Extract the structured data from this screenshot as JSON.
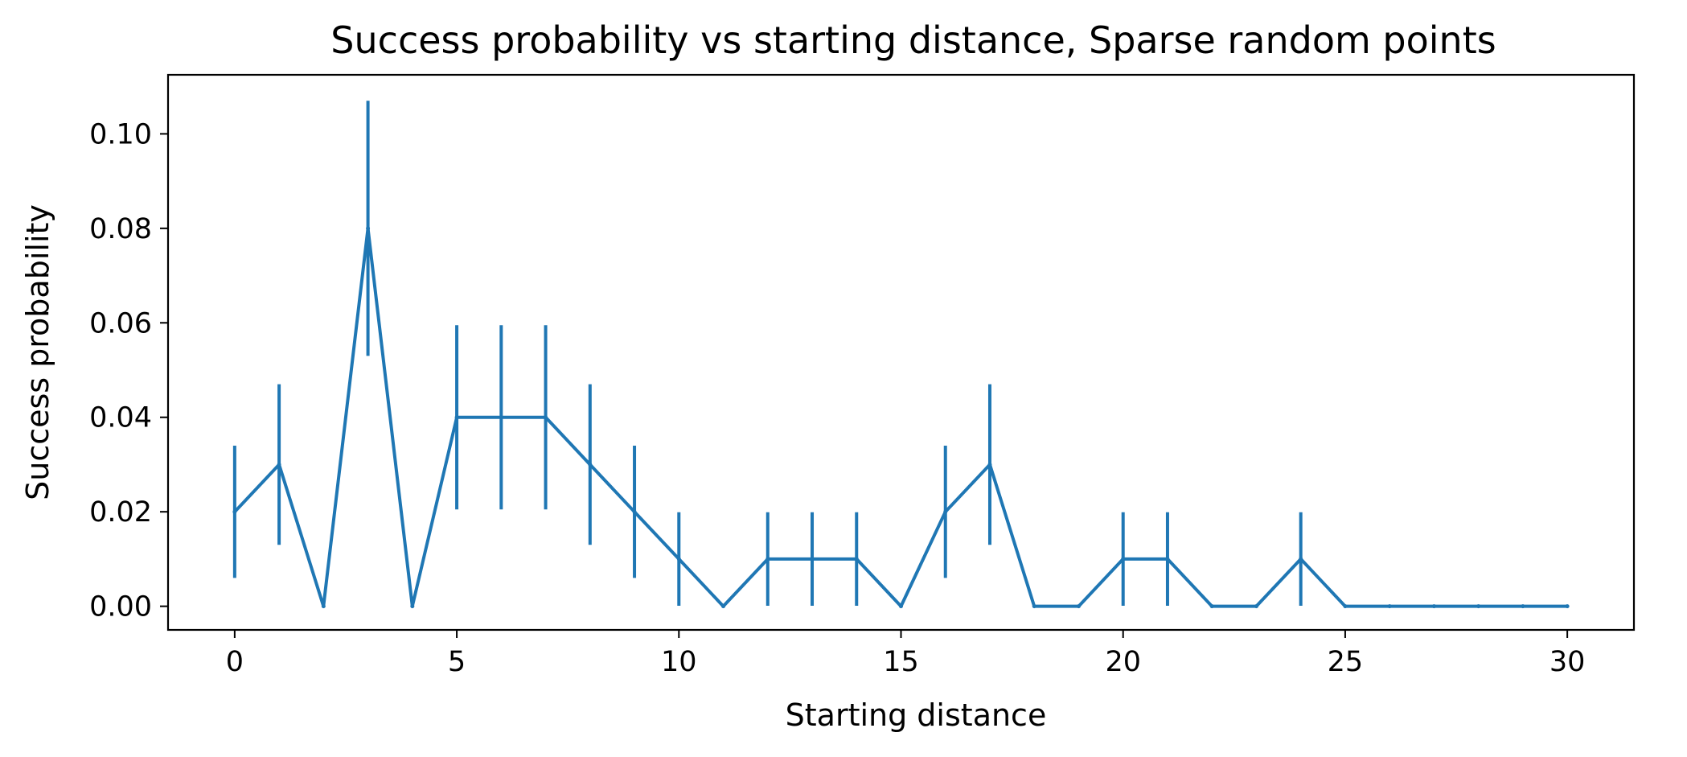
{
  "chart_data": {
    "type": "line",
    "title": "Success probability vs starting distance, Sparse random points",
    "xlabel": "Starting distance",
    "ylabel": "Success probability",
    "xlim": [
      -1.5,
      31.5
    ],
    "ylim": [
      -0.005,
      0.1125
    ],
    "xticks": [
      0,
      5,
      10,
      15,
      20,
      25,
      30
    ],
    "xtick_labels": [
      "0",
      "5",
      "10",
      "15",
      "20",
      "25",
      "30"
    ],
    "yticks": [
      0.0,
      0.02,
      0.04,
      0.06,
      0.08,
      0.1
    ],
    "ytick_labels": [
      "0.00",
      "0.02",
      "0.04",
      "0.06",
      "0.08",
      "0.10"
    ],
    "grid": false,
    "legend": "none",
    "color": "#1f77b4",
    "series": [
      {
        "name": "Success probability",
        "x": [
          0,
          1,
          2,
          3,
          4,
          5,
          6,
          7,
          8,
          9,
          10,
          11,
          12,
          13,
          14,
          15,
          16,
          17,
          18,
          19,
          20,
          21,
          22,
          23,
          24,
          25,
          26,
          27,
          28,
          29,
          30
        ],
        "values": [
          0.02,
          0.03,
          0.0,
          0.08,
          0.0,
          0.04,
          0.04,
          0.04,
          0.03,
          0.02,
          0.01,
          0.0,
          0.01,
          0.01,
          0.01,
          0.0,
          0.02,
          0.03,
          0.0,
          0.0,
          0.01,
          0.01,
          0.0,
          0.0,
          0.01,
          0.0,
          0.0,
          0.0,
          0.0,
          0.0,
          0.0
        ],
        "errors": [
          0.014,
          0.017,
          0.0,
          0.027,
          0.0,
          0.0195,
          0.0195,
          0.0195,
          0.017,
          0.014,
          0.0099,
          0.0,
          0.0099,
          0.0099,
          0.0099,
          0.0,
          0.014,
          0.017,
          0.0,
          0.0,
          0.0099,
          0.0099,
          0.0,
          0.0,
          0.0099,
          0.0,
          0.0,
          0.0,
          0.0,
          0.0,
          0.0
        ]
      }
    ]
  }
}
